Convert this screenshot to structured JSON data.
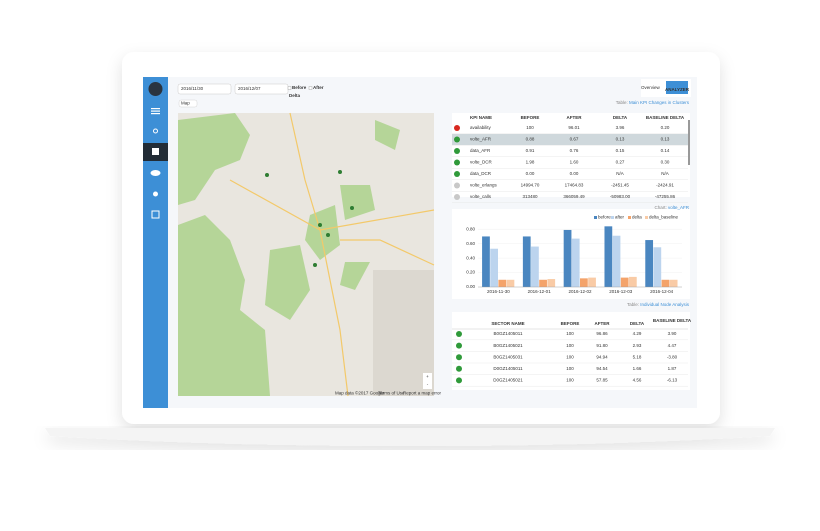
{
  "toolbar": {
    "start_date": "2016/11/30",
    "end_date": "2016/12/07",
    "options": [
      "Before",
      "After",
      "Delta"
    ],
    "overview": "Overview",
    "logo": "ANALYZER"
  },
  "map": {
    "selector": "Map",
    "attribution": "Map data ©2017 Google",
    "terms": "Terms of Use",
    "report": "Report a map error",
    "zoom_in": "+",
    "zoom_out": "-"
  },
  "kpi_table": {
    "label": "Table:",
    "name": "Main KPI Changes in Clusters",
    "columns": [
      "KPI NAME",
      "BEFORE",
      "AFTER",
      "DELTA",
      "BASELINE DELTA"
    ],
    "status": [
      "#d8281f",
      "#2f9a3a",
      "#2f9a3a",
      "#2f9a3a",
      "#2f9a3a",
      "#c8c8c8",
      "#c8c8c8"
    ],
    "rows": [
      [
        "availability",
        "100",
        "96.01",
        "3.96",
        "0.20"
      ],
      [
        "volte_AFR",
        "0.88",
        "0.67",
        "0.13",
        "0.13"
      ],
      [
        "data_AFR",
        "0.91",
        "0.76",
        "0.15",
        "0.14"
      ],
      [
        "volte_DCR",
        "1.98",
        "1.60",
        "0.27",
        "0.30"
      ],
      [
        "data_DCR",
        "0.00",
        "0.00",
        "N/A",
        "N/A"
      ],
      [
        "volte_erlangs",
        "14994.70",
        "17464.83",
        "-2451.45",
        "-2424.91"
      ],
      [
        "volte_calls",
        "313480",
        "366059.49",
        "-50983.00",
        "-47255.86"
      ]
    ]
  },
  "chart": {
    "type": "bar",
    "label": "Chart:",
    "name": "volte_AFR",
    "categories": [
      "2016-11-30",
      "2016-12-01",
      "2016-12-02",
      "2016-12-03",
      "2016-12-04"
    ],
    "series": [
      {
        "name": "before",
        "color": "#4a86c0",
        "values": [
          0.7,
          0.7,
          0.79,
          0.84,
          0.65
        ]
      },
      {
        "name": "after",
        "color": "#bcd4ee",
        "values": [
          0.53,
          0.56,
          0.67,
          0.71,
          0.55
        ]
      },
      {
        "name": "delta",
        "color": "#f4a36a",
        "values": [
          0.1,
          0.1,
          0.12,
          0.13,
          0.1
        ]
      },
      {
        "name": "delta_baseline",
        "color": "#f9cba6",
        "values": [
          0.1,
          0.11,
          0.13,
          0.14,
          0.1
        ]
      }
    ],
    "ylim": [
      0,
      0.9
    ],
    "yticks": [
      {
        "value": 0,
        "label": "0.00"
      },
      {
        "value": 0.2,
        "label": "0.20"
      },
      {
        "value": 0.4,
        "label": "0.40"
      },
      {
        "value": 0.6,
        "label": "0.60"
      },
      {
        "value": 0.8,
        "label": "0.80"
      }
    ]
  },
  "node_table": {
    "label": "Table:",
    "name": "Individual Node Analysis",
    "columns": [
      "SECTOR NAME",
      "BEFORE",
      "AFTER",
      "DELTA",
      "BASELINE DELTA"
    ],
    "rows": [
      [
        "B0GZ1405011",
        "100",
        "96.86",
        "4.29",
        "3.90"
      ],
      [
        "B0GZ1405021",
        "100",
        "91.80",
        "2.93",
        "4.47"
      ],
      [
        "B0GZ1405031",
        "100",
        "94.94",
        "5.18",
        "-3.80"
      ],
      [
        "D0GZ1405011",
        "100",
        "94.54",
        "1.66",
        "1.87"
      ],
      [
        "D0GZ1405021",
        "100",
        "57.85",
        "4.56",
        "-6.13"
      ]
    ]
  }
}
